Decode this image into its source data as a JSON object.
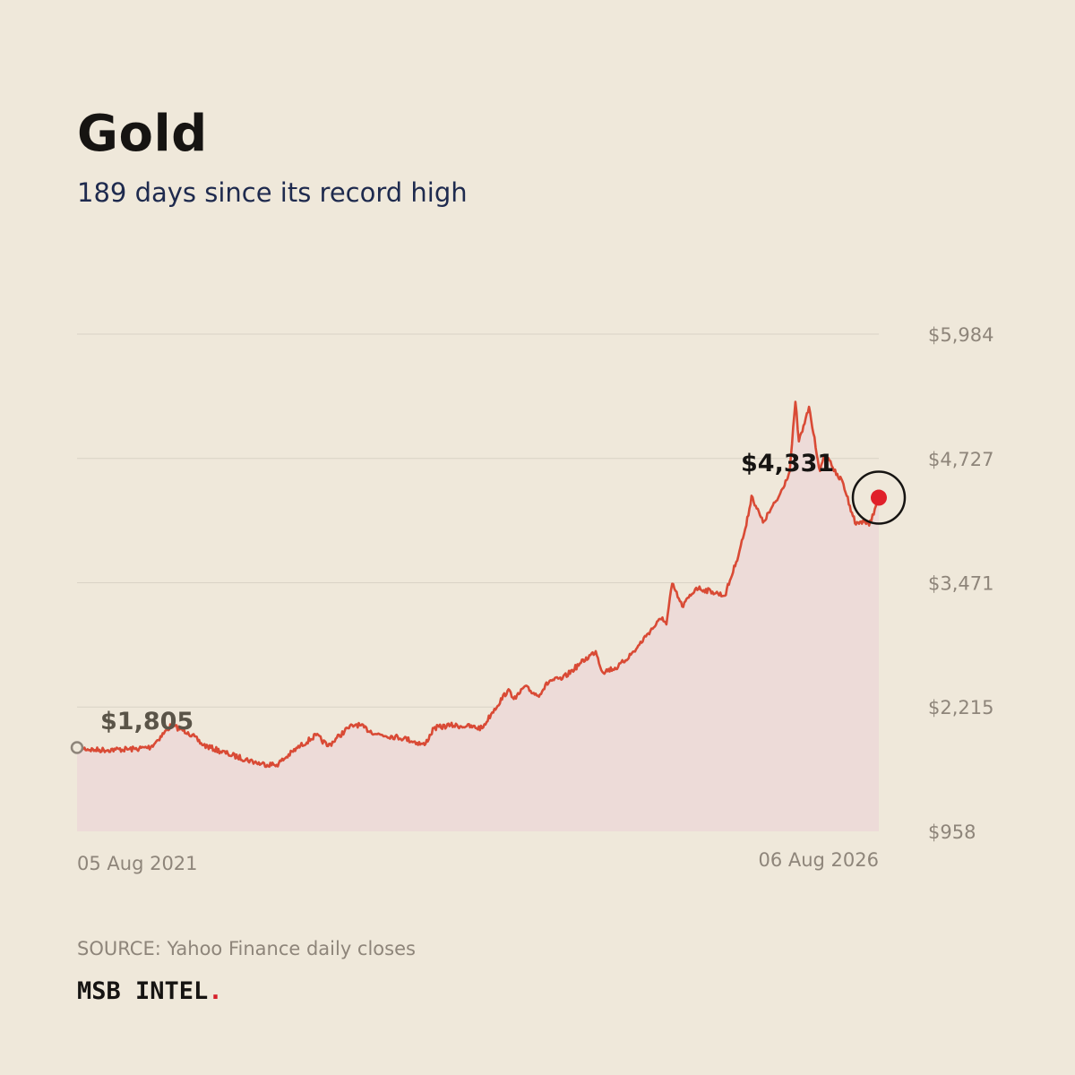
{
  "header": {
    "title": "Gold",
    "subtitle": "189 days since its record high"
  },
  "footer": {
    "source": "SOURCE: Yahoo Finance daily closes",
    "brand": "MSB INTEL",
    "brand_dot": "."
  },
  "colors": {
    "background": "#efe8da",
    "line": "#d94a35",
    "area": "#eddbd8",
    "grid": "#d9d2c5",
    "tick_text": "#8e857a",
    "current_marker": "#e0202a",
    "start_marker": "#8e857a"
  },
  "chart_data": {
    "type": "line",
    "title": "Gold",
    "subtitle": "189 days since its record high",
    "xlabel": "",
    "ylabel": "",
    "ylim": [
      958,
      5984
    ],
    "y_ticks": [
      958,
      2215,
      3471,
      4727,
      5984
    ],
    "y_tick_labels": [
      "$958",
      "$2,215",
      "$3,471",
      "$4,727",
      "$5,984"
    ],
    "x_tick_labels": [
      "05 Aug 2021",
      "06 Aug 2026"
    ],
    "xlim": [
      "2021-08-05",
      "2026-08-06"
    ],
    "grid": true,
    "legend": "none",
    "annotations": [
      {
        "text": "$1,805",
        "x": "2021-08-05",
        "y": 1805,
        "kind": "start"
      },
      {
        "text": "$4,331",
        "x": "2026-08-06",
        "y": 4331,
        "kind": "current"
      }
    ],
    "series": [
      {
        "x": [
          "2021-08-05",
          "2021-09-15",
          "2021-11-01",
          "2021-12-15",
          "2022-01-20",
          "2022-03-08",
          "2022-04-15",
          "2022-05-20",
          "2022-07-15",
          "2022-09-28",
          "2022-11-03",
          "2022-12-20",
          "2023-02-01",
          "2023-02-28",
          "2023-04-14",
          "2023-05-04",
          "2023-06-20",
          "2023-08-20",
          "2023-10-06",
          "2023-10-27",
          "2023-12-04",
          "2024-01-10",
          "2024-02-14",
          "2024-03-08",
          "2024-04-12",
          "2024-05-01",
          "2024-05-20",
          "2024-06-20",
          "2024-07-17",
          "2024-08-15",
          "2024-09-26",
          "2024-10-30",
          "2024-11-14",
          "2024-12-20",
          "2025-01-30",
          "2025-02-24",
          "2025-03-31",
          "2025-04-09",
          "2025-04-22",
          "2025-05-15",
          "2025-06-16",
          "2025-07-23",
          "2025-08-20",
          "2025-09-15",
          "2025-10-08",
          "2025-10-20",
          "2025-11-15",
          "2025-12-20",
          "2026-01-15",
          "2026-01-28",
          "2026-02-05",
          "2026-02-18",
          "2026-02-28",
          "2026-03-10",
          "2026-03-25",
          "2026-04-05",
          "2026-04-18",
          "2026-05-01",
          "2026-05-15",
          "2026-06-01",
          "2026-06-15",
          "2026-07-01",
          "2026-07-15",
          "2026-07-28",
          "2026-08-06"
        ],
        "values": [
          1805,
          1780,
          1785,
          1790,
          1810,
          2030,
          1960,
          1830,
          1740,
          1640,
          1630,
          1800,
          1930,
          1820,
          2000,
          2040,
          1940,
          1900,
          1830,
          2000,
          2030,
          2020,
          2000,
          2160,
          2380,
          2300,
          2420,
          2330,
          2480,
          2500,
          2660,
          2780,
          2570,
          2620,
          2800,
          2950,
          3120,
          3050,
          3460,
          3230,
          3420,
          3380,
          3340,
          3680,
          4050,
          4350,
          4080,
          4330,
          4600,
          5300,
          4900,
          5080,
          5250,
          4980,
          4600,
          4750,
          4700,
          4560,
          4500,
          4250,
          4060,
          4100,
          4050,
          4220,
          4331
        ]
      }
    ]
  }
}
